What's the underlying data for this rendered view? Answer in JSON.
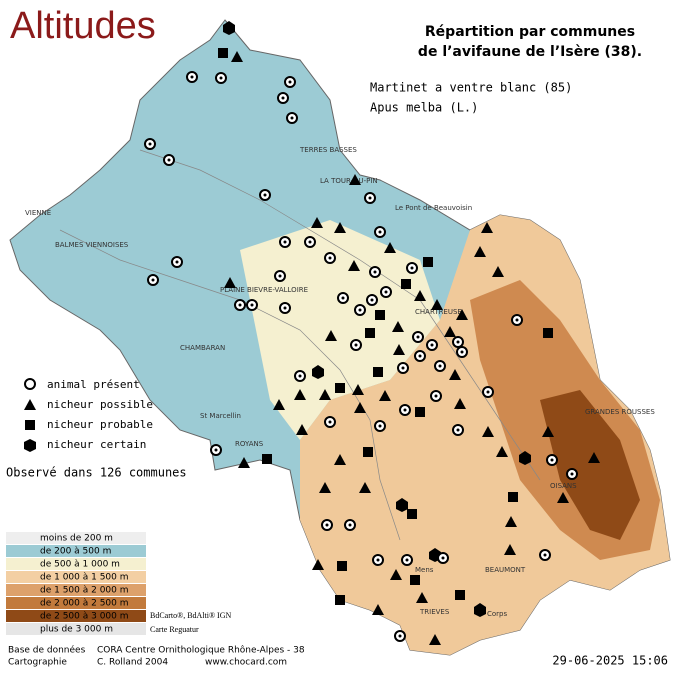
{
  "title": "Altitudes",
  "heading": [
    "Répartition par communes",
    "de l’avifaune de l’Isère (38)."
  ],
  "species": [
    "Martinet a ventre blanc  (85)",
    "Apus melba (L.)"
  ],
  "legend": [
    "animal présent",
    "nicheur possible",
    "nicheur probable",
    "nicheur certain"
  ],
  "observed": "Observé dans 126 communes",
  "altitude_legend": [
    "moins de 200 m",
    "de 200 à 500 m",
    "de 500 à 1 000 m",
    "de 1 000 à 1 500 m",
    "de 1 500 à 2 000 m",
    "de 2 000 à 2 500 m",
    "de 2 500 à 3 000 m",
    "plus de 3 000 m"
  ],
  "credits": [
    "BdCarto®, BdAlti® IGN",
    "Carte Reguatur"
  ],
  "footer": {
    "db_label": "Base de données",
    "db": "CORA Centre Ornithologique Rhône-Alpes - 38",
    "carto_label": "Cartographie",
    "carto": "C. Rolland 2004",
    "site": "www.chocard.com",
    "date": "29-06-2025 15:06"
  },
  "places": [
    "VIENNE",
    "BALMES VIENNOISES",
    "LA TOUR-DU-PIN",
    "TERRES BASSES",
    "Le Pont de Beauvoisin",
    "PLAINE BIEVRE-VALLOIRE",
    "CHAMBARAN",
    "St Marcellin",
    "ROYANS",
    "CHARTREUSE",
    "GRANDES ROUSSES",
    "OISANS",
    "BEAUMONT",
    "TRIEVES",
    "Corps",
    "Mens"
  ]
}
